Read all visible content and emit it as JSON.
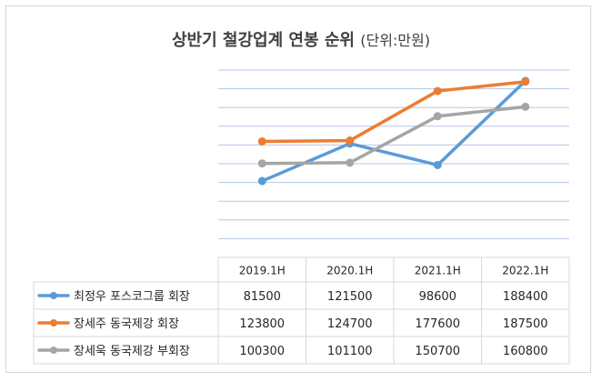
{
  "title": {
    "main": "상반기 철강업계 연봉 순위",
    "unit": "(단위:만원)"
  },
  "colors": {
    "series": [
      "#5b9bd5",
      "#ed7d31",
      "#a5a5a5"
    ],
    "grid": "#b4c7e7",
    "table_border": "#d9d9d9"
  },
  "chart_data": {
    "type": "line",
    "title": "상반기 철강업계 연봉 순위 (단위:만원)",
    "categories": [
      "2019.1H",
      "2020.1H",
      "2021.1H",
      "2022.1H"
    ],
    "series": [
      {
        "name": "최정우 포스코그룹 회장",
        "values": [
          81500,
          121500,
          98600,
          188400
        ]
      },
      {
        "name": "장세주 동국제강 회장",
        "values": [
          123800,
          124700,
          177600,
          187500
        ]
      },
      {
        "name": "장세욱 동국제강 부회장",
        "values": [
          100300,
          101100,
          150700,
          160800
        ]
      }
    ],
    "ylim": [
      0,
      200000
    ],
    "y_ticks_shown": false,
    "grid": true,
    "legend": "data-table-left",
    "data_table": true
  }
}
